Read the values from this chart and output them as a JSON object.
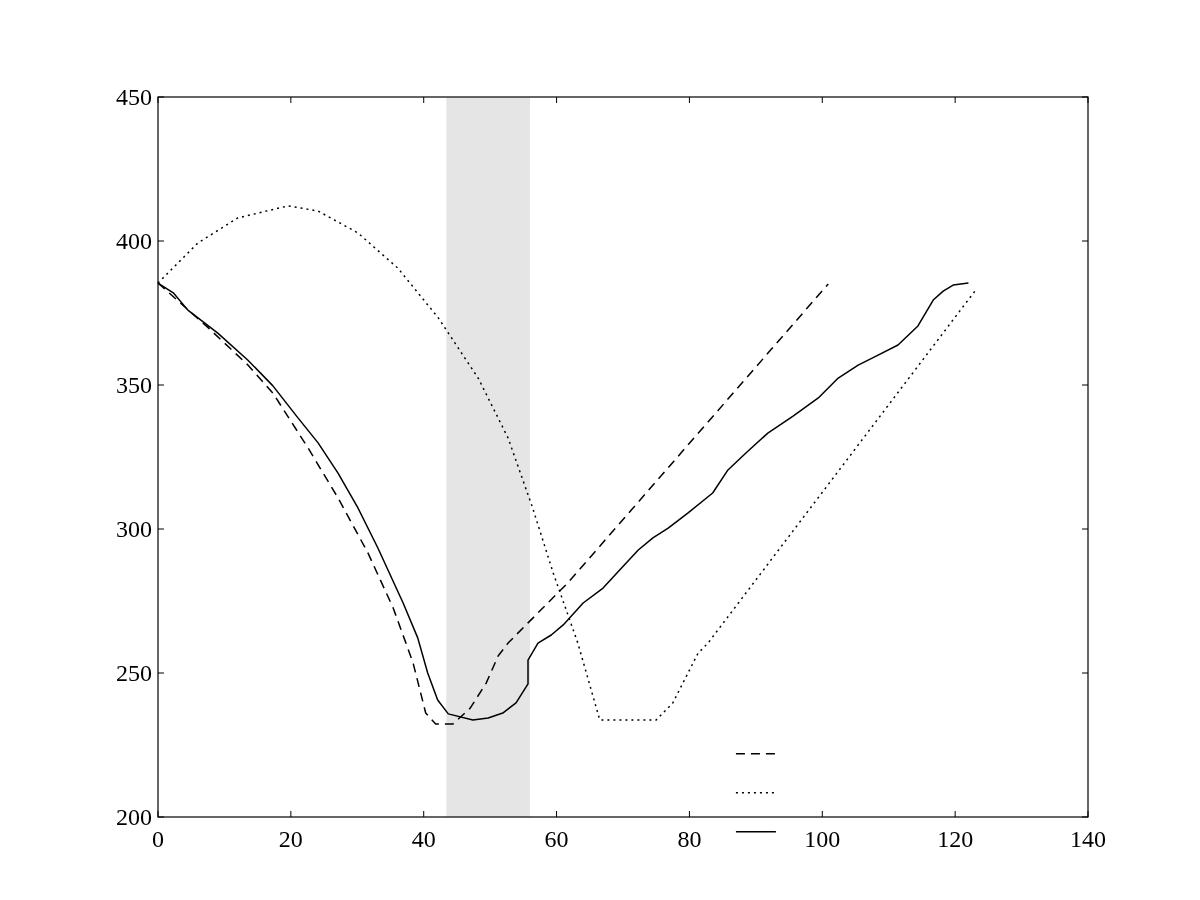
{
  "chart_data": {
    "type": "line",
    "xlim": [
      0,
      140
    ],
    "ylim": [
      200,
      450
    ],
    "xticks": [
      0,
      20,
      40,
      60,
      80,
      100,
      120,
      140
    ],
    "yticks": [
      200,
      250,
      300,
      350,
      400,
      450
    ],
    "grid": false,
    "bands": [
      {
        "axis": "x",
        "from": 43.4,
        "to": 56,
        "color": "#e5e5e5"
      }
    ],
    "series": [
      {
        "color": "#000000",
        "line_style": "dashed",
        "x": [
          0,
          7.5,
          13.5,
          17.3,
          22.6,
          27.1,
          31.6,
          35.4,
          38.4,
          40.3,
          41.8,
          44.4,
          47,
          49.4,
          51.2,
          52.7,
          55.7,
          61.7,
          100.9
        ],
        "values": [
          385.4,
          370,
          357,
          347.2,
          328.1,
          310.8,
          291.7,
          272.6,
          253.5,
          236.1,
          232.3,
          232.3,
          237.8,
          246.5,
          255.9,
          260.4,
          267.4,
          281.3,
          385.1
        ]
      },
      {
        "color": "#000000",
        "line_style": "dotted",
        "x": [
          0,
          6,
          12,
          19.6,
          24.1,
          30.1,
          36.1,
          42.2,
          48.2,
          52.7,
          56.4,
          59.5,
          63.2,
          66.5,
          75,
          77.5,
          81.3,
          82.8,
          123.1
        ],
        "values": [
          385.4,
          399.3,
          408,
          412.2,
          410.4,
          402.8,
          390.6,
          373.3,
          352.4,
          331.6,
          307.3,
          284.7,
          260.4,
          233.7,
          233.7,
          239.6,
          256.9,
          260.4,
          383
        ]
      },
      {
        "color": "#000000",
        "line_style": "solid",
        "x": [
          0,
          2.3,
          4.5,
          9,
          13.5,
          17.3,
          21.1,
          24.1,
          27.1,
          30.1,
          33.1,
          36.9,
          39.1,
          40.6,
          42.1,
          43.7,
          47.4,
          49.7,
          51.9,
          53.9,
          55.7,
          55.7,
          57.2,
          59.2,
          61,
          64,
          67,
          69.5,
          72.3,
          74.5,
          76.8,
          79.8,
          83.5,
          85.8,
          88.5,
          91.8,
          95.6,
          99.4,
          102.4,
          105.4,
          108.4,
          111.4,
          114.4,
          116.7,
          118.2,
          119.7,
          122
        ],
        "values": [
          385.4,
          382,
          376,
          368,
          358.7,
          349.7,
          338.5,
          329.9,
          319.4,
          307.3,
          293.4,
          274.3,
          262.2,
          250,
          240.6,
          235.8,
          233.7,
          234.4,
          236.1,
          239.6,
          246.2,
          254.5,
          260.4,
          263.2,
          266.7,
          274.3,
          279.5,
          285.8,
          292.7,
          296.9,
          300.3,
          305.6,
          312.5,
          320.5,
          326.4,
          333.3,
          339.2,
          345.5,
          352.4,
          356.9,
          360.4,
          363.9,
          370.5,
          379.5,
          382.6,
          384.7,
          385.4
        ]
      }
    ]
  }
}
